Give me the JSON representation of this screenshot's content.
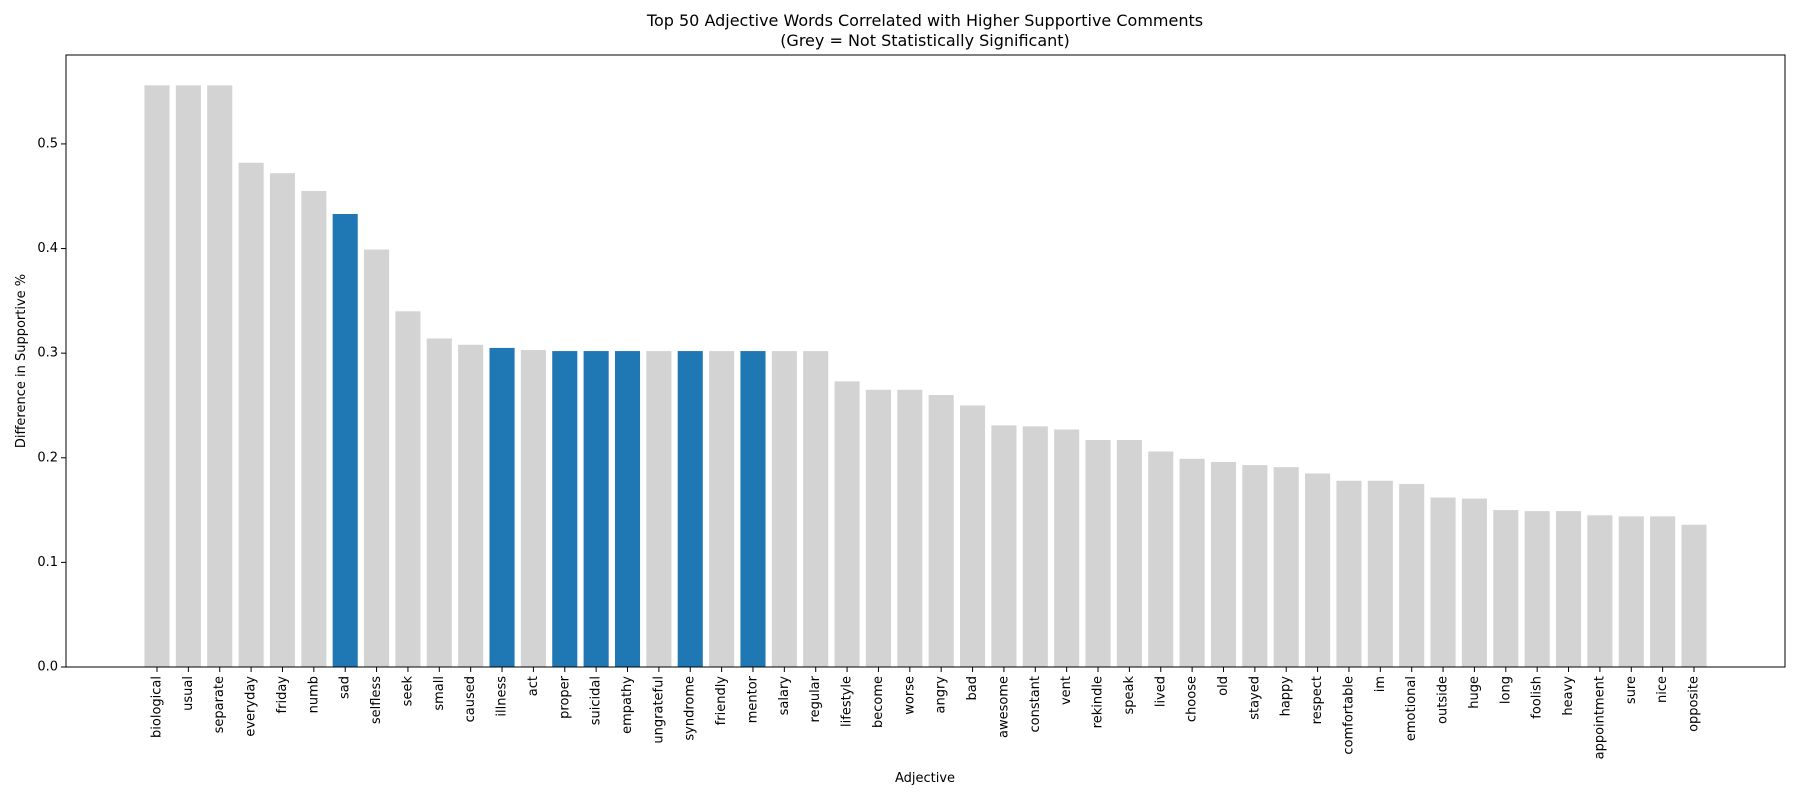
{
  "chart_data": {
    "type": "bar",
    "title": "Top 50 Adjective Words Correlated with Higher Supportive Comments",
    "subtitle": "(Grey = Not Statistically Significant)",
    "xlabel": "Adjective",
    "ylabel": "Difference in Supportive %",
    "ylim": [
      0,
      0.585
    ],
    "yticks": [
      0.0,
      0.1,
      0.2,
      0.3,
      0.4,
      0.5
    ],
    "ytick_labels": [
      "0.0",
      "0.1",
      "0.2",
      "0.3",
      "0.4",
      "0.5"
    ],
    "grid": false,
    "colors": {
      "significant": "#1f77b4",
      "not_significant": "#d3d3d3"
    },
    "categories": [
      "biological",
      "usual",
      "separate",
      "everyday",
      "friday",
      "numb",
      "sad",
      "selfless",
      "seek",
      "small",
      "caused",
      "illness",
      "act",
      "proper",
      "suicidal",
      "empathy",
      "ungrateful",
      "syndrome",
      "friendly",
      "mentor",
      "salary",
      "regular",
      "lifestyle",
      "become",
      "worse",
      "angry",
      "bad",
      "awesome",
      "constant",
      "vent",
      "rekindle",
      "speak",
      "lived",
      "choose",
      "old",
      "stayed",
      "happy",
      "respect",
      "comfortable",
      "im",
      "emotional",
      "outside",
      "huge",
      "long",
      "foolish",
      "heavy",
      "appointment",
      "sure",
      "nice",
      "opposite"
    ],
    "values": [
      0.556,
      0.556,
      0.556,
      0.482,
      0.472,
      0.455,
      0.433,
      0.399,
      0.34,
      0.314,
      0.308,
      0.305,
      0.303,
      0.302,
      0.302,
      0.302,
      0.302,
      0.302,
      0.302,
      0.302,
      0.302,
      0.302,
      0.273,
      0.265,
      0.265,
      0.26,
      0.25,
      0.231,
      0.23,
      0.227,
      0.217,
      0.217,
      0.206,
      0.199,
      0.196,
      0.193,
      0.191,
      0.185,
      0.178,
      0.178,
      0.175,
      0.162,
      0.161,
      0.15,
      0.149,
      0.149,
      0.145,
      0.144,
      0.144,
      0.136
    ],
    "significant": [
      false,
      false,
      false,
      false,
      false,
      false,
      true,
      false,
      false,
      false,
      false,
      true,
      false,
      true,
      true,
      true,
      false,
      true,
      false,
      true,
      false,
      false,
      false,
      false,
      false,
      false,
      false,
      false,
      false,
      false,
      false,
      false,
      false,
      false,
      false,
      false,
      false,
      false,
      false,
      false,
      false,
      false,
      false,
      false,
      false,
      false,
      false,
      false,
      false,
      false
    ]
  }
}
